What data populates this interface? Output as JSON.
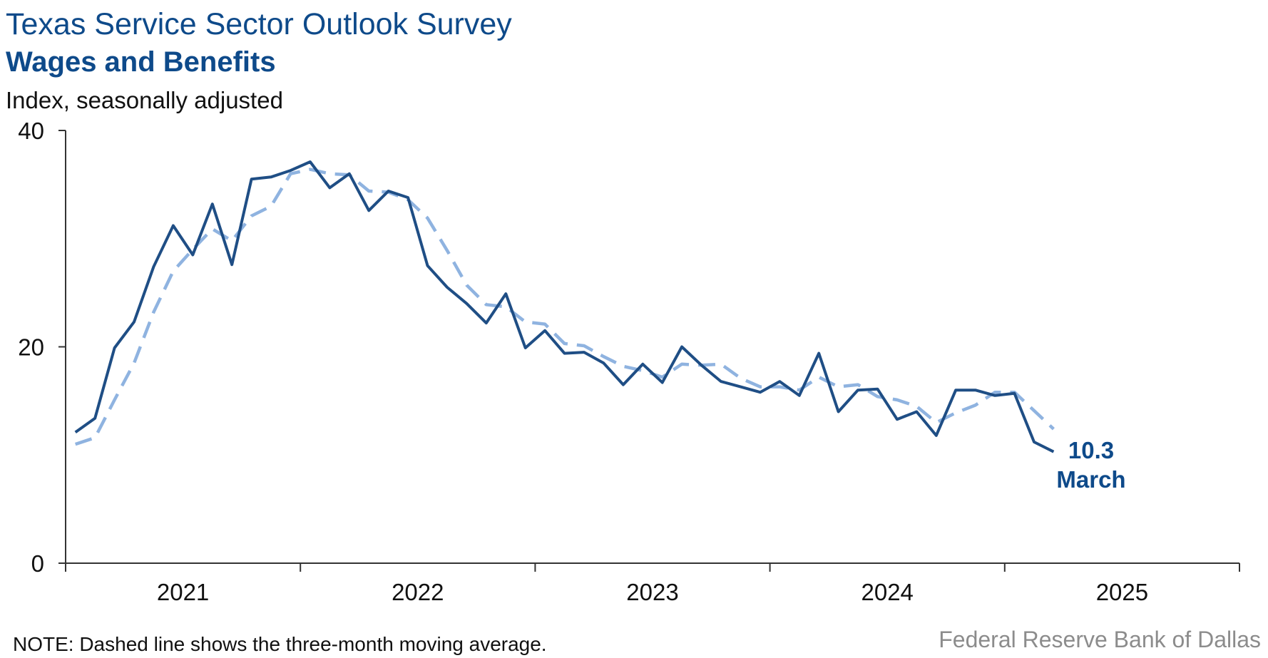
{
  "chart_data": {
    "type": "line",
    "title": "Texas Service Sector Outlook Survey",
    "subtitle": "Wages and Benefits",
    "ylabel": "Index, seasonally adjusted",
    "ylim": [
      0,
      40
    ],
    "yticks": [
      0,
      20,
      40
    ],
    "xticks": [
      "2021",
      "2022",
      "2023",
      "2024",
      "2025"
    ],
    "grid": false,
    "x_start": "2021-01",
    "series": [
      {
        "role": "monthly",
        "color": "#1f4e85",
        "style": "solid",
        "values": [
          12.1,
          13.4,
          19.9,
          22.3,
          27.4,
          31.2,
          28.5,
          33.2,
          27.6,
          35.5,
          35.7,
          36.3,
          37.1,
          34.7,
          36.0,
          32.6,
          34.4,
          33.8,
          27.5,
          25.5,
          24.0,
          22.2,
          24.9,
          19.9,
          21.5,
          19.4,
          19.5,
          18.5,
          16.5,
          18.4,
          16.7,
          20.0,
          18.3,
          16.8,
          16.3,
          15.8,
          16.8,
          15.5,
          19.4,
          14.0,
          16.0,
          16.1,
          13.3,
          14.0,
          11.8,
          16.0,
          16.0,
          15.5,
          15.7,
          11.2,
          10.3
        ]
      },
      {
        "role": "three-month moving average",
        "color": "#8fb3e0",
        "style": "dashed",
        "values": [
          11.0,
          11.6,
          15.1,
          18.5,
          23.2,
          27.0,
          29.0,
          30.9,
          29.8,
          32.1,
          33.0,
          36.0,
          36.4,
          36.0,
          35.9,
          34.4,
          34.3,
          33.6,
          31.9,
          28.9,
          25.7,
          23.9,
          23.7,
          22.3,
          22.1,
          20.3,
          20.1,
          19.1,
          18.2,
          17.8,
          17.2,
          18.4,
          18.3,
          18.4,
          17.1,
          16.3,
          16.3,
          16.0,
          17.2,
          16.3,
          16.5,
          15.4,
          15.1,
          14.5,
          13.0,
          13.9,
          14.6,
          15.8,
          15.8,
          14.1,
          12.4
        ]
      }
    ],
    "annotation": {
      "value": "10.3",
      "label": "March",
      "color": "#0e4a8a"
    }
  },
  "note": "NOTE: Dashed line shows the three-month moving average.",
  "source": "Federal Reserve Bank of Dallas",
  "colors": {
    "axis": "#333333"
  }
}
